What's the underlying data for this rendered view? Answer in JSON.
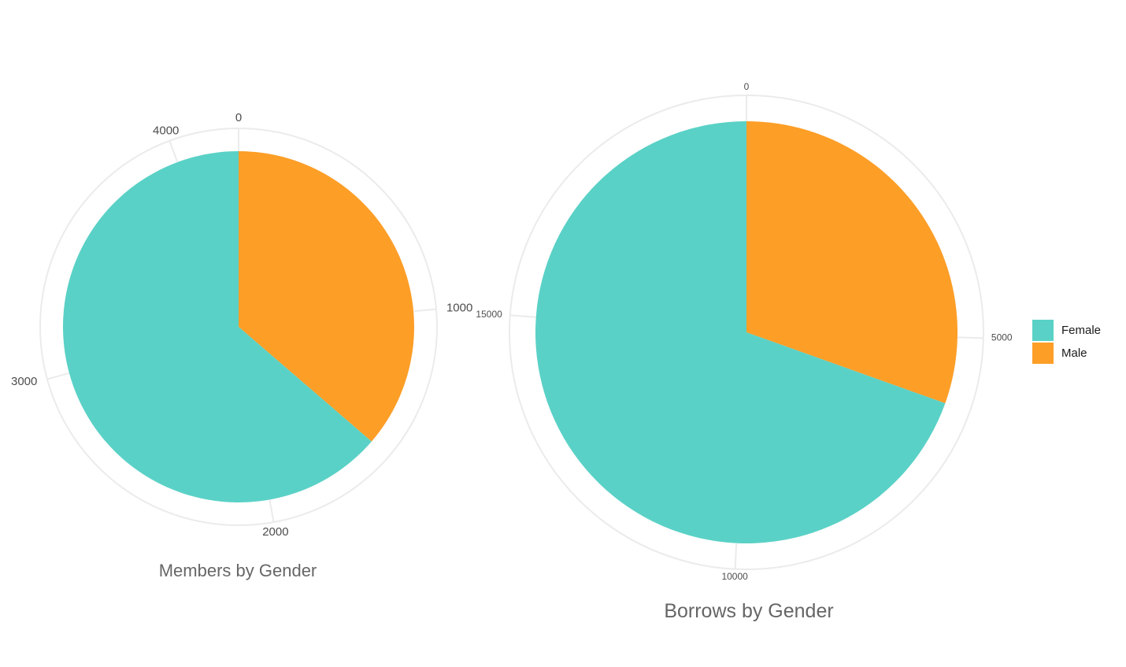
{
  "colors": {
    "Female": "#5ad1c6",
    "Male": "#fd9e27",
    "grid": "#ebebeb",
    "tick_text": "#4d4d4d"
  },
  "chart_data": [
    {
      "type": "pie",
      "title": "Members by Gender",
      "slices": [
        {
          "label": "Male",
          "value": 1540
        },
        {
          "label": "Female",
          "value": 2700
        }
      ],
      "total": 4240,
      "axis_ticks": [
        "0",
        "1000",
        "2000",
        "3000",
        "4000"
      ],
      "tick_values": [
        0,
        1000,
        2000,
        3000,
        4000
      ],
      "grid": true,
      "legend": "none"
    },
    {
      "type": "pie",
      "title": "Borrows by Gender",
      "slices": [
        {
          "label": "Male",
          "value": 6000
        },
        {
          "label": "Female",
          "value": 13700
        }
      ],
      "total": 19700,
      "axis_ticks": [
        "0",
        "5000",
        "10000",
        "15000"
      ],
      "tick_values": [
        0,
        5000,
        10000,
        15000
      ],
      "grid": true,
      "legend": "right"
    }
  ],
  "legend": {
    "items": [
      {
        "label": "Female",
        "color": "#5ad1c6"
      },
      {
        "label": "Male",
        "color": "#fd9e27"
      }
    ]
  }
}
